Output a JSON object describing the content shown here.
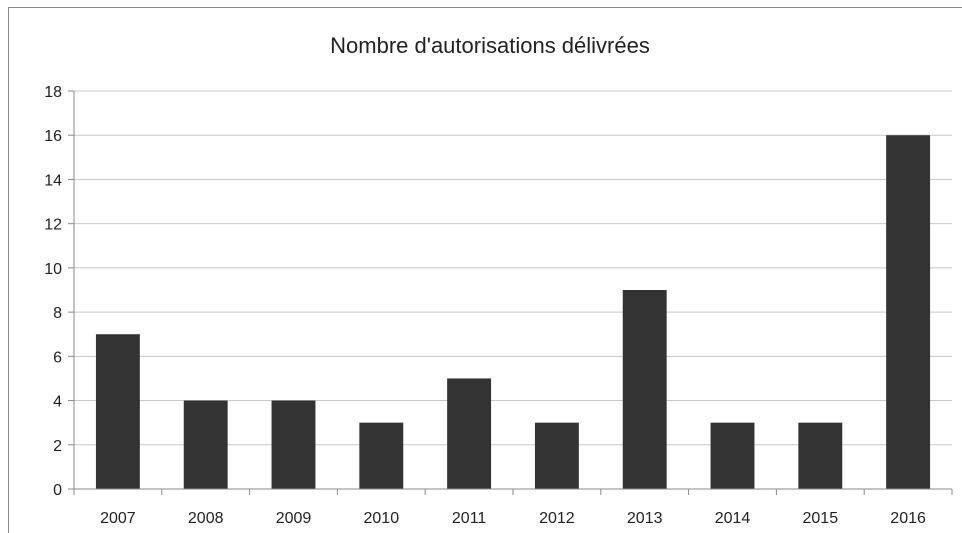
{
  "chart_data": {
    "type": "bar",
    "title": "Nombre d'autorisations délivrées",
    "xlabel": "",
    "ylabel": "",
    "categories": [
      "2007",
      "2008",
      "2009",
      "2010",
      "2011",
      "2012",
      "2013",
      "2014",
      "2015",
      "2016"
    ],
    "values": [
      7,
      4,
      4,
      3,
      5,
      3,
      9,
      3,
      3,
      16
    ],
    "ylim": [
      0,
      18
    ],
    "yticks": [
      "0",
      "2",
      "4",
      "6",
      "8",
      "10",
      "12",
      "14",
      "16",
      "18"
    ],
    "grid": true,
    "legend": "none",
    "bar_color": "#333333",
    "grid_color": "#c8c8c8",
    "axis_color": "#8a8a8a"
  }
}
